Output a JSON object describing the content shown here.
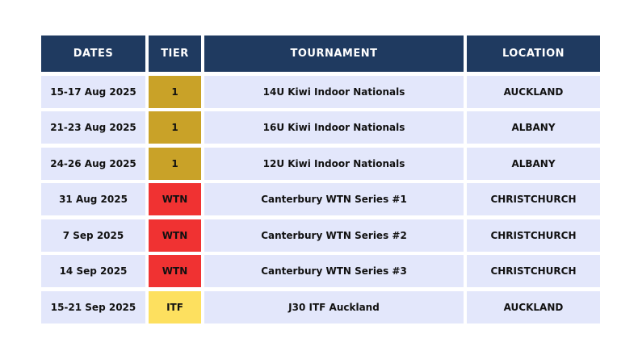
{
  "columns": [
    "DATES",
    "TIER",
    "TOURNAMENT",
    "LOCATION"
  ],
  "tier_colors": {
    "1": "#c9a228",
    "WTN": "#f03232",
    "ITF": "#fde05f"
  },
  "row_background": "#e3e7fb",
  "header_background": "#1f3a60",
  "rows": [
    {
      "date": "15-17 Aug 2025",
      "tier": "1",
      "tournament": "14U Kiwi Indoor Nationals",
      "location": "AUCKLAND"
    },
    {
      "date": "21-23 Aug 2025",
      "tier": "1",
      "tournament": "16U Kiwi Indoor Nationals",
      "location": "ALBANY"
    },
    {
      "date": "24-26 Aug 2025",
      "tier": "1",
      "tournament": "12U Kiwi Indoor Nationals",
      "location": "ALBANY"
    },
    {
      "date": "31 Aug 2025",
      "tier": "WTN",
      "tournament": "Canterbury WTN Series #1",
      "location": "CHRISTCHURCH"
    },
    {
      "date": "7 Sep 2025",
      "tier": "WTN",
      "tournament": "Canterbury WTN Series #2",
      "location": "CHRISTCHURCH"
    },
    {
      "date": "14 Sep 2025",
      "tier": "WTN",
      "tournament": "Canterbury WTN Series #3",
      "location": "CHRISTCHURCH"
    },
    {
      "date": "15-21 Sep 2025",
      "tier": "ITF",
      "tournament": "J30 ITF Auckland",
      "location": "AUCKLAND"
    }
  ]
}
